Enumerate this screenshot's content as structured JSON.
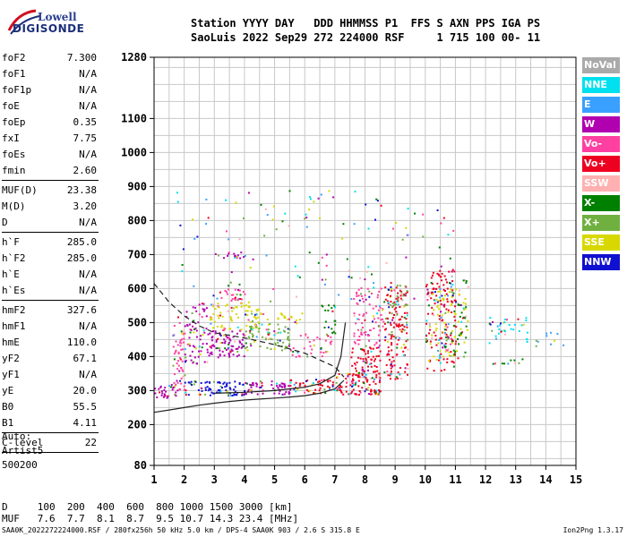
{
  "logo": {
    "line1": "Lowell",
    "line2": "DIGISONDE"
  },
  "header": {
    "line1": "Station YYYY DAY   DDD HHMMSS P1  FFS S AXN PPS IGA PS",
    "line2": "SaoLuis 2022 Sep29 272 224000 RSF     1 715 100 00- 11"
  },
  "params_group1": [
    {
      "key": "foF2",
      "value": "7.300"
    },
    {
      "key": "foF1",
      "value": "N/A"
    },
    {
      "key": "foF1p",
      "value": "N/A"
    },
    {
      "key": "foE",
      "value": "N/A"
    },
    {
      "key": "foEp",
      "value": "0.35"
    },
    {
      "key": "fxI",
      "value": "7.75"
    },
    {
      "key": "foEs",
      "value": "N/A"
    },
    {
      "key": "fmin",
      "value": "2.60"
    }
  ],
  "params_group2": [
    {
      "key": "MUF(D)",
      "value": "23.38"
    },
    {
      "key": "M(D)",
      "value": "3.20"
    },
    {
      "key": "D",
      "value": "N/A"
    }
  ],
  "params_group3": [
    {
      "key": "h`F",
      "value": "285.0"
    },
    {
      "key": "h`F2",
      "value": "285.0"
    },
    {
      "key": "h`E",
      "value": "N/A"
    },
    {
      "key": "h`Es",
      "value": "N/A"
    }
  ],
  "params_group4": [
    {
      "key": "hmF2",
      "value": "327.6"
    },
    {
      "key": "hmF1",
      "value": "N/A"
    },
    {
      "key": "hmE",
      "value": "110.0"
    },
    {
      "key": "yF2",
      "value": "67.1"
    },
    {
      "key": "yF1",
      "value": "N/A"
    },
    {
      "key": "yE",
      "value": "20.0"
    },
    {
      "key": "B0",
      "value": "55.5"
    },
    {
      "key": "B1",
      "value": "4.11"
    }
  ],
  "params_group5": [
    {
      "key": "C-level",
      "value": "22"
    }
  ],
  "auto": {
    "line1": "Auto:",
    "line2": "Artist5",
    "line3": "500200"
  },
  "legend": [
    {
      "label": "NoVal",
      "color": "#aaaaaa"
    },
    {
      "label": "NNE",
      "color": "#00e0ee"
    },
    {
      "label": "E",
      "color": "#3aa0ff"
    },
    {
      "label": "W",
      "color": "#b000b0"
    },
    {
      "label": "Vo-",
      "color": "#ff40a0"
    },
    {
      "label": "Vo+",
      "color": "#ee0020"
    },
    {
      "label": "SSW",
      "color": "#ffb0b0"
    },
    {
      "label": "X-",
      "color": "#008000"
    },
    {
      "label": "X+",
      "color": "#70b040"
    },
    {
      "label": "SSE",
      "color": "#d8d800"
    },
    {
      "label": "NNW",
      "color": "#1010d0"
    }
  ],
  "muf_table": {
    "line1": "D     100  200  400  600  800 1000 1500 3000 [km]",
    "line2": "MUF   7.6  7.7  8.1  8.7  9.5 10.7 14.3 23.4 [MHz]"
  },
  "footer": {
    "left": "SAA0K_2022272224000.RSF / 280fx256h 50 kHz 5.0 km / DPS-4 SAA0K 903 / 2.6 S 315.8 E",
    "right": "Ion2Png 1.3.17"
  },
  "chart_data": {
    "type": "scatter",
    "xlabel": "",
    "ylabel": "",
    "xlim": [
      1,
      15
    ],
    "ylim": [
      80,
      1280
    ],
    "x_ticks": [
      1,
      2,
      3,
      4,
      5,
      6,
      7,
      8,
      9,
      10,
      11,
      12,
      13,
      14,
      15
    ],
    "y_ticks": [
      80,
      200,
      300,
      400,
      500,
      600,
      700,
      800,
      900,
      1000,
      1100,
      1280
    ],
    "y_tick_labels": [
      "80",
      "200",
      "300",
      "400",
      "500",
      "600",
      "700",
      "800",
      "900",
      "1000",
      "1100",
      "1280"
    ],
    "grid": true,
    "echo_clusters": [
      {
        "x": [
          1.0,
          1.8
        ],
        "y": [
          280,
          320
        ],
        "color": "#b000b0",
        "density": 0.7
      },
      {
        "x": [
          1.6,
          2.0
        ],
        "y": [
          300,
          520
        ],
        "color": "#ff40a0",
        "density": 0.45
      },
      {
        "x": [
          2.0,
          2.8
        ],
        "y": [
          290,
          330
        ],
        "color": "#1010d0",
        "density": 0.6
      },
      {
        "x": [
          2.0,
          2.8
        ],
        "y": [
          380,
          560
        ],
        "color": "#b000b0",
        "density": 0.35
      },
      {
        "x": [
          2.8,
          4.0
        ],
        "y": [
          285,
          330
        ],
        "color": "#1010d0",
        "density": 0.75
      },
      {
        "x": [
          2.8,
          4.0
        ],
        "y": [
          400,
          480
        ],
        "color": "#b000b0",
        "density": 0.6
      },
      {
        "x": [
          2.8,
          4.5
        ],
        "y": [
          480,
          560
        ],
        "color": "#d8d800",
        "density": 0.4
      },
      {
        "x": [
          2.9,
          4.0
        ],
        "y": [
          560,
          600
        ],
        "color": "#ff40a0",
        "density": 0.4
      },
      {
        "x": [
          3.0,
          4.0
        ],
        "y": [
          690,
          710
        ],
        "color": "#b000b0",
        "density": 0.6
      },
      {
        "x": [
          4.0,
          5.5
        ],
        "y": [
          290,
          330
        ],
        "color": "#b000b0",
        "density": 0.7
      },
      {
        "x": [
          4.0,
          5.5
        ],
        "y": [
          420,
          500
        ],
        "color": "#70b040",
        "density": 0.45
      },
      {
        "x": [
          4.0,
          6.0
        ],
        "y": [
          500,
          530
        ],
        "color": "#d8d800",
        "density": 0.35
      },
      {
        "x": [
          5.5,
          7.0
        ],
        "y": [
          295,
          335
        ],
        "color": "#ee0020",
        "density": 0.6
      },
      {
        "x": [
          5.5,
          7.0
        ],
        "y": [
          400,
          470
        ],
        "color": "#ff40a0",
        "density": 0.25
      },
      {
        "x": [
          6.5,
          7.0
        ],
        "y": [
          470,
          560
        ],
        "color": "#008000",
        "density": 0.3
      },
      {
        "x": [
          7.0,
          8.5
        ],
        "y": [
          290,
          360
        ],
        "color": "#ee0020",
        "density": 0.8
      },
      {
        "x": [
          7.5,
          8.5
        ],
        "y": [
          360,
          430
        ],
        "color": "#ee0020",
        "density": 0.55
      },
      {
        "x": [
          7.6,
          8.6
        ],
        "y": [
          430,
          610
        ],
        "color": "#ff40a0",
        "density": 0.35
      },
      {
        "x": [
          8.6,
          9.4
        ],
        "y": [
          330,
          620
        ],
        "color": "#ee0020",
        "density": 0.45
      },
      {
        "x": [
          8.8,
          9.4
        ],
        "y": [
          440,
          620
        ],
        "color": "#70b040",
        "density": 0.2
      },
      {
        "x": [
          10.0,
          11.0
        ],
        "y": [
          360,
          660
        ],
        "color": "#ee0020",
        "density": 0.35
      },
      {
        "x": [
          10.0,
          11.4
        ],
        "y": [
          390,
          600
        ],
        "color": "#d8d800",
        "density": 0.2
      },
      {
        "x": [
          10.6,
          11.4
        ],
        "y": [
          400,
          640
        ],
        "color": "#008000",
        "density": 0.15
      },
      {
        "x": [
          12.1,
          13.4
        ],
        "y": [
          440,
          520
        ],
        "color": "#00e0ee",
        "density": 0.25
      },
      {
        "x": [
          12.2,
          13.2
        ],
        "y": [
          380,
          400
        ],
        "color": "#008000",
        "density": 0.35
      },
      {
        "x": [
          13.6,
          14.6
        ],
        "y": [
          420,
          480
        ],
        "color": "#3aa0ff",
        "density": 0.12
      }
    ],
    "lines": [
      {
        "name": "",
        "style": "solid",
        "x": [
          1.0,
          1.5,
          2.0,
          2.5,
          3.0,
          3.5,
          4.0,
          4.5,
          5.0,
          5.5,
          6.0,
          6.5,
          7.0,
          7.3
        ],
        "y": [
          236,
          243,
          250,
          257,
          263,
          268,
          272,
          275,
          278,
          281,
          285,
          292,
          305,
          330
        ]
      },
      {
        "name": "",
        "style": "solid",
        "x": [
          3.0,
          4.0,
          5.0,
          6.0,
          6.5,
          7.0,
          7.2,
          7.35
        ],
        "y": [
          292,
          295,
          300,
          310,
          320,
          345,
          400,
          500
        ]
      },
      {
        "name": "",
        "style": "dashed",
        "x": [
          1.0,
          1.5,
          2.0,
          2.5,
          3.0,
          4.0,
          5.0,
          6.0,
          7.0,
          7.3
        ],
        "y": [
          615,
          560,
          520,
          490,
          470,
          455,
          435,
          410,
          370,
          340
        ]
      }
    ]
  }
}
